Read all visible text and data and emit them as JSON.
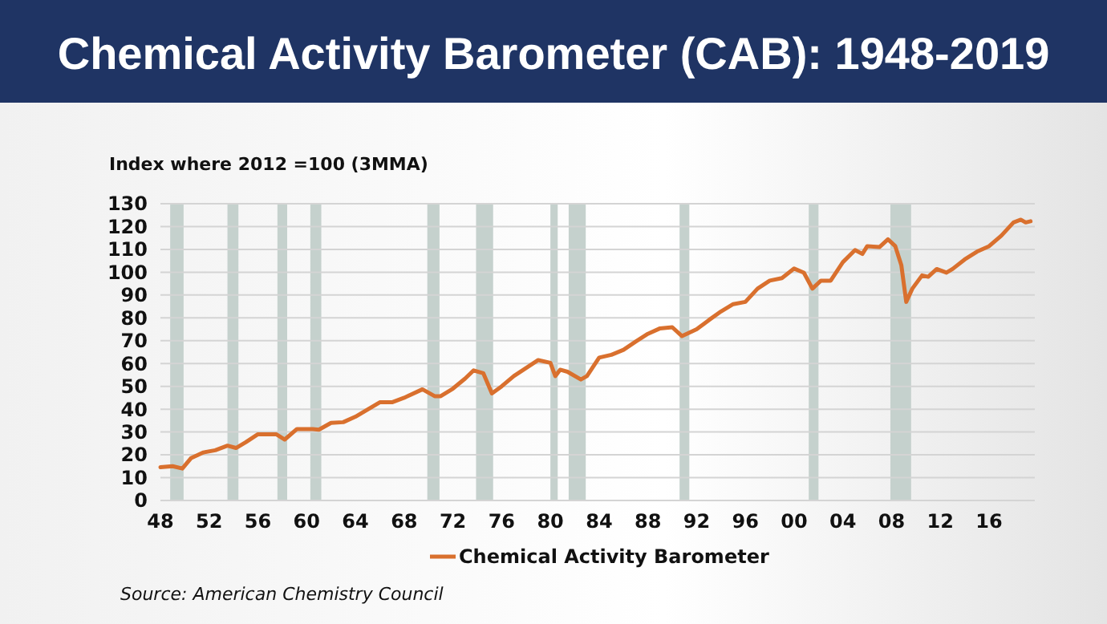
{
  "chart_data": {
    "type": "line",
    "title": "Chemical Activity Barometer (CAB): 1948-2019",
    "ylabel": "Index where 2012 =100 (3MMA)",
    "annotations": [
      "Source: American Chemistry Council"
    ],
    "xlim": [
      1948,
      2019.75
    ],
    "ylim": [
      0,
      130
    ],
    "xticks": [
      {
        "value": 1948,
        "label": "48"
      },
      {
        "value": 1952,
        "label": "52"
      },
      {
        "value": 1956,
        "label": "56"
      },
      {
        "value": 1960,
        "label": "60"
      },
      {
        "value": 1964,
        "label": "64"
      },
      {
        "value": 1968,
        "label": "68"
      },
      {
        "value": 1972,
        "label": "72"
      },
      {
        "value": 1976,
        "label": "76"
      },
      {
        "value": 1980,
        "label": "80"
      },
      {
        "value": 1984,
        "label": "84"
      },
      {
        "value": 1988,
        "label": "88"
      },
      {
        "value": 1992,
        "label": "92"
      },
      {
        "value": 1996,
        "label": "96"
      },
      {
        "value": 2000,
        "label": "00"
      },
      {
        "value": 2004,
        "label": "04"
      },
      {
        "value": 2008,
        "label": "08"
      },
      {
        "value": 2012,
        "label": "12"
      },
      {
        "value": 2016,
        "label": "16"
      }
    ],
    "yticks": [
      0,
      10,
      20,
      30,
      40,
      50,
      60,
      70,
      80,
      90,
      100,
      110,
      120,
      130
    ],
    "grid": "y",
    "legend": "bottom",
    "marker": "none",
    "line_style": "solid",
    "bands": [
      {
        "axis": "x",
        "from": 1948.8,
        "to": 1949.9,
        "color": "#c5d1cd"
      },
      {
        "axis": "x",
        "from": 1953.5,
        "to": 1954.4,
        "color": "#c5d1cd"
      },
      {
        "axis": "x",
        "from": 1957.6,
        "to": 1958.4,
        "color": "#c5d1cd"
      },
      {
        "axis": "x",
        "from": 1960.3,
        "to": 1961.2,
        "color": "#c5d1cd"
      },
      {
        "axis": "x",
        "from": 1969.9,
        "to": 1970.9,
        "color": "#c5d1cd"
      },
      {
        "axis": "x",
        "from": 1973.9,
        "to": 1975.3,
        "color": "#c5d1cd"
      },
      {
        "axis": "x",
        "from": 1980.0,
        "to": 1980.6,
        "color": "#c5d1cd"
      },
      {
        "axis": "x",
        "from": 1981.5,
        "to": 1982.9,
        "color": "#c5d1cd"
      },
      {
        "axis": "x",
        "from": 1990.6,
        "to": 1991.4,
        "color": "#c5d1cd"
      },
      {
        "axis": "x",
        "from": 2001.2,
        "to": 2002.0,
        "color": "#c5d1cd"
      },
      {
        "axis": "x",
        "from": 2007.9,
        "to": 2009.6,
        "color": "#c5d1cd"
      }
    ],
    "x": [
      1948,
      1949,
      1949.8,
      1950.5,
      1951.5,
      1952.5,
      1953.5,
      1954.2,
      1955,
      1956,
      1957.5,
      1958.2,
      1959.2,
      1960.5,
      1961,
      1962,
      1963,
      1964,
      1966,
      1967,
      1968,
      1969.5,
      1970.5,
      1971,
      1972,
      1973,
      1973.7,
      1974.5,
      1975.2,
      1976,
      1977,
      1978,
      1979,
      1980,
      1980.4,
      1980.8,
      1981.4,
      1982.5,
      1983,
      1984,
      1985,
      1986,
      1987,
      1988,
      1989,
      1990,
      1990.8,
      1992,
      1993,
      1994,
      1995,
      1996,
      1997,
      1998,
      1999,
      2000,
      2000.8,
      2001.5,
      2002.2,
      2003,
      2004,
      2005,
      2005.6,
      2006,
      2007,
      2007.7,
      2008.3,
      2008.8,
      2009.2,
      2009.7,
      2010.5,
      2011,
      2011.7,
      2012.5,
      2013,
      2014,
      2015,
      2016,
      2017,
      2018,
      2018.6,
      2019,
      2019.4
    ],
    "series": [
      {
        "name": "Chemical Activity Barometer",
        "color": "#d9702e",
        "values": [
          14.6,
          15,
          14,
          18.5,
          21,
          22,
          24,
          23,
          25.5,
          29,
          29,
          26.7,
          31.3,
          31.3,
          31,
          34,
          34.3,
          36.7,
          43,
          43,
          45,
          48.7,
          45.7,
          45.7,
          49,
          53.4,
          57,
          55.7,
          46.9,
          50,
          54.5,
          58,
          61.5,
          60.3,
          54.5,
          57.3,
          56.4,
          53,
          54.5,
          62.6,
          63.8,
          66,
          69.6,
          73,
          75.4,
          75.9,
          72,
          75,
          79,
          82.8,
          86,
          87,
          92.8,
          96.3,
          97.4,
          101.6,
          99.8,
          92.8,
          96.3,
          96.3,
          104.4,
          109.7,
          108,
          111.4,
          111,
          114.4,
          111.4,
          103,
          87,
          92.8,
          98.6,
          98,
          101.4,
          99.8,
          101.4,
          105.6,
          109,
          111.4,
          116,
          121.8,
          123,
          121.8,
          122.3
        ]
      }
    ]
  }
}
